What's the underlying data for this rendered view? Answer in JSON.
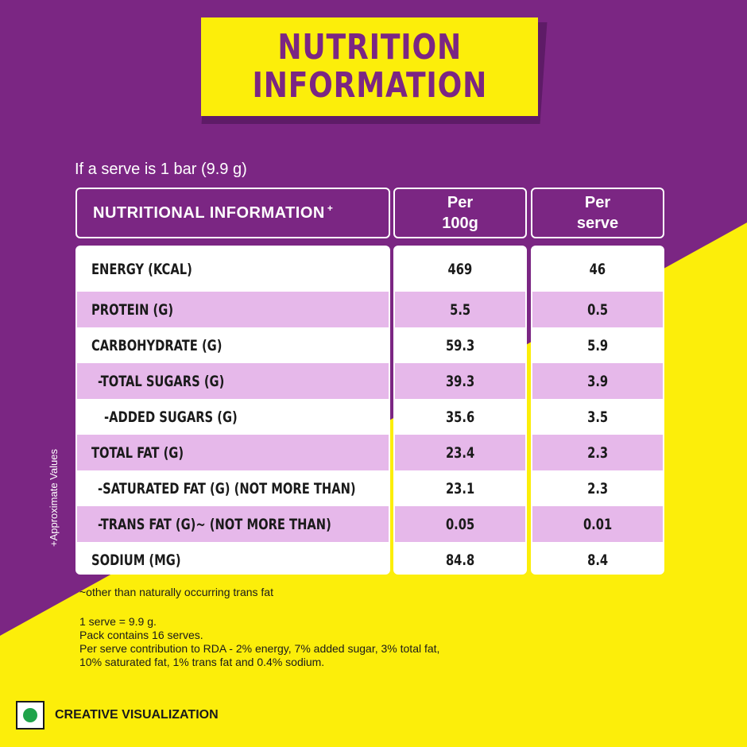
{
  "title": {
    "line1": "NUTRITION",
    "line2": "INFORMATION"
  },
  "serve_note": "If a serve is 1 bar (9.9 g)",
  "table": {
    "header_label": "NUTRITIONAL INFORMATION",
    "header_label_mark": "+",
    "col1_line1": "Per",
    "col1_line2": "100g",
    "col2_line1": "Per",
    "col2_line2": "serve",
    "rows": [
      {
        "label": "ENERGY (KCAL)",
        "per100": "469",
        "perserve": "46"
      },
      {
        "label": "PROTEIN (G)",
        "per100": "5.5",
        "perserve": "0.5"
      },
      {
        "label": "CARBOHYDRATE (G)",
        "per100": "59.3",
        "perserve": "5.9"
      },
      {
        "label": "-TOTAL SUGARS (G)",
        "per100": "39.3",
        "perserve": "3.9"
      },
      {
        "label": "-ADDED SUGARS (G)",
        "per100": "35.6",
        "perserve": "3.5"
      },
      {
        "label": "TOTAL FAT (G)",
        "per100": "23.4",
        "perserve": "2.3"
      },
      {
        "label": "-SATURATED FAT (G) (NOT MORE THAN)",
        "per100": "23.1",
        "perserve": "2.3"
      },
      {
        "label": "-TRANS FAT (G)~ (NOT MORE THAN)",
        "per100": "0.05",
        "perserve": "0.01"
      },
      {
        "label": "SODIUM (MG)",
        "per100": "84.8",
        "perserve": "8.4"
      }
    ]
  },
  "side_note": "+Approximate Values",
  "footnotes": {
    "trans_fat": "~other than naturally occurring trans fat",
    "serve": "1 serve = 9.9 g.",
    "pack": "Pack contains 16 serves.",
    "rda1": "Per serve contribution to RDA - 2% energy, 7% added sugar, 3% total fat,",
    "rda2": "10% saturated fat, 1% trans fat and 0.4% sodium."
  },
  "creative_label": "CREATIVE VISUALIZATION",
  "colors": {
    "purple": "#7b2683",
    "yellow": "#fcee0a",
    "row_tint": "#e6b8ea",
    "veg_green": "#1fa34a"
  }
}
